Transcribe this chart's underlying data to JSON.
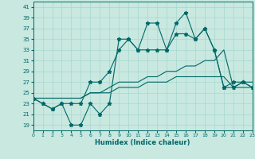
{
  "xlabel": "Humidex (Indice chaleur)",
  "background_color": "#c8e8e0",
  "grid_color": "#a8d8d0",
  "line_color": "#006868",
  "xlim": [
    0,
    23
  ],
  "ylim": [
    18,
    42
  ],
  "yticks": [
    19,
    21,
    23,
    25,
    27,
    29,
    31,
    33,
    35,
    37,
    39,
    41
  ],
  "xticks": [
    0,
    1,
    2,
    3,
    4,
    5,
    6,
    7,
    8,
    9,
    10,
    11,
    12,
    13,
    14,
    15,
    16,
    17,
    18,
    19,
    20,
    21,
    22,
    23
  ],
  "series": [
    {
      "y": [
        24,
        23,
        22,
        23,
        19,
        19,
        23,
        21,
        23,
        35,
        35,
        33,
        38,
        38,
        33,
        38,
        40,
        35,
        37,
        33,
        26,
        27,
        27,
        26
      ],
      "marker": true
    },
    {
      "y": [
        24,
        23,
        22,
        23,
        23,
        23,
        27,
        27,
        29,
        33,
        35,
        33,
        33,
        33,
        33,
        36,
        36,
        35,
        37,
        33,
        26,
        26,
        27,
        26
      ],
      "marker": true
    },
    {
      "y": [
        24,
        24,
        24,
        24,
        24,
        24,
        25,
        25,
        26,
        27,
        27,
        27,
        28,
        28,
        29,
        29,
        30,
        30,
        31,
        31,
        33,
        26,
        27,
        27
      ],
      "marker": false
    },
    {
      "y": [
        24,
        24,
        24,
        24,
        24,
        24,
        25,
        25,
        25,
        26,
        26,
        26,
        27,
        27,
        27,
        28,
        28,
        28,
        28,
        28,
        28,
        26,
        26,
        26
      ],
      "marker": false
    }
  ]
}
